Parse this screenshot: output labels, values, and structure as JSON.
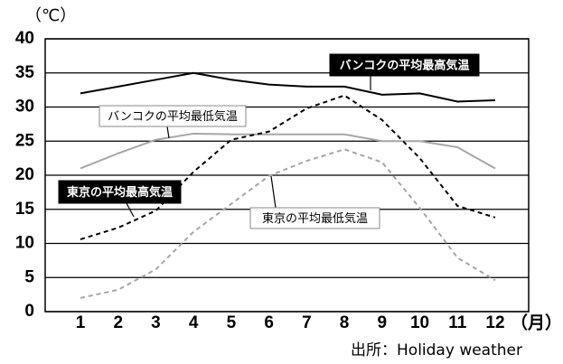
{
  "chart_data": {
    "type": "line",
    "y_unit": "（℃）",
    "x_unit": "（月）",
    "source": "出所：Holiday weather",
    "categories": [
      1,
      2,
      3,
      4,
      5,
      6,
      7,
      8,
      9,
      10,
      11,
      12
    ],
    "ylim": [
      0,
      40
    ],
    "yticks": [
      0,
      5,
      10,
      15,
      20,
      25,
      30,
      35,
      40
    ],
    "grid": true,
    "series": [
      {
        "name": "バンコクの平均最高気温",
        "color": "#000000",
        "dash": "solid",
        "values": [
          32,
          33,
          34,
          35,
          34,
          33.3,
          33,
          33,
          31.8,
          32,
          30.8,
          31
        ]
      },
      {
        "name": "バンコクの平均最低気温",
        "color": "#a6a6a6",
        "dash": "solid",
        "values": [
          21,
          23.2,
          25.2,
          26.1,
          26,
          26,
          26,
          26,
          25,
          25,
          24.1,
          21
        ]
      },
      {
        "name": "東京の平均最高気温",
        "color": "#000000",
        "dash": "dashed",
        "values": [
          10.6,
          12.3,
          14.8,
          20.5,
          25.2,
          26.4,
          29.8,
          31.7,
          28.1,
          22.5,
          15.5,
          13.8
        ]
      },
      {
        "name": "東京の平均最低気温",
        "color": "#a6a6a6",
        "dash": "dashed",
        "values": [
          2,
          3.2,
          6.2,
          11.7,
          15.8,
          19.9,
          22.1,
          23.8,
          21.9,
          15.2,
          7.9,
          4.6
        ]
      }
    ]
  }
}
